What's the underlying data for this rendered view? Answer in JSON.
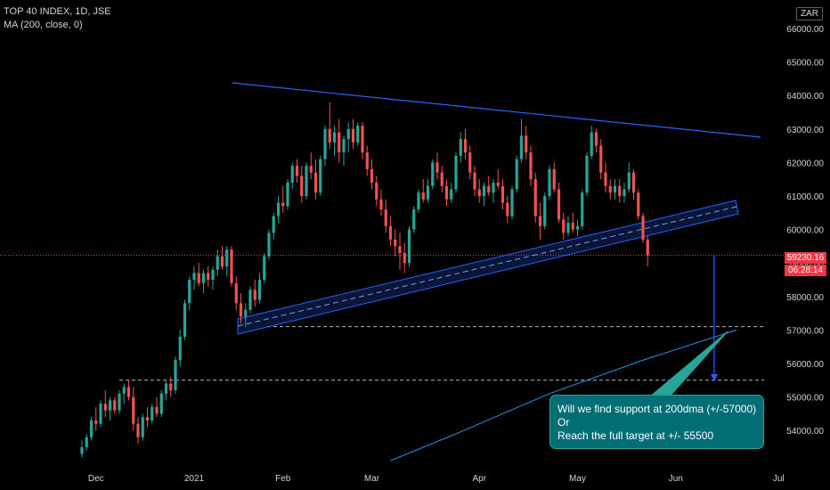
{
  "header": {
    "symbol_line": "TOP 40 INDEX, 1D, JSE",
    "indicator_line": "MA (200, close, 0)",
    "currency": "ZAR"
  },
  "price_tag": {
    "price": "59230.16",
    "countdown": "06:28:14"
  },
  "annotation": {
    "line1": "Will we find support at 200dma (+/-57000)",
    "line2": "Or",
    "line3": "Reach the full target at +/- 55500"
  },
  "colors": {
    "up": "#26a69a",
    "down": "#ef5350",
    "trendline": "#2962ff",
    "ma": "#2196f3",
    "background": "#000000"
  },
  "chart_data": {
    "type": "candlestick",
    "y_axis": {
      "range": [
        53200,
        66500
      ],
      "ticks": [
        54000,
        55000,
        56000,
        57000,
        58000,
        59000,
        60000,
        61000,
        62000,
        63000,
        64000,
        65000,
        66000
      ],
      "tick_labels": [
        "54000.00",
        "55000.00",
        "56000.00",
        "57000.00",
        "58000.00",
        "59000.00",
        "60000.00",
        "61000.00",
        "62000.00",
        "63000.00",
        "64000.00",
        "65000.00",
        "66000.00"
      ]
    },
    "x_axis": {
      "tick_labels": [
        "Dec",
        "2021",
        "Feb",
        "Mar",
        "Apr",
        "May",
        "Jun",
        "Jul"
      ],
      "tick_positions": [
        3,
        24,
        43,
        62,
        85,
        106,
        127,
        149
      ]
    },
    "last_price": 59230.16,
    "levels": [
      {
        "name": "target-level",
        "value": 55500
      },
      {
        "name": "ma-support-level",
        "value": 57100
      }
    ],
    "ma200": [
      {
        "bar": 66,
        "value": 53100
      },
      {
        "bar": 80,
        "value": 53900
      },
      {
        "bar": 100,
        "value": 55100
      },
      {
        "bar": 120,
        "value": 56100
      },
      {
        "bar": 140,
        "value": 57000
      }
    ],
    "candles": [
      [
        53300,
        53700,
        53200,
        53500
      ],
      [
        53500,
        53900,
        53400,
        53800
      ],
      [
        53800,
        54400,
        53700,
        54300
      ],
      [
        54300,
        54700,
        54000,
        54200
      ],
      [
        54200,
        54900,
        54100,
        54800
      ],
      [
        54800,
        55200,
        54400,
        54600
      ],
      [
        54600,
        55000,
        54300,
        54900
      ],
      [
        54900,
        55000,
        54500,
        54600
      ],
      [
        54600,
        55200,
        54500,
        55100
      ],
      [
        55100,
        55400,
        54800,
        55300
      ],
      [
        55300,
        55500,
        54900,
        55000
      ],
      [
        55000,
        55300,
        54000,
        54200
      ],
      [
        54200,
        54400,
        53600,
        53800
      ],
      [
        53800,
        54500,
        53700,
        54400
      ],
      [
        54400,
        54700,
        54100,
        54300
      ],
      [
        54300,
        54800,
        54200,
        54700
      ],
      [
        54700,
        55000,
        54400,
        54500
      ],
      [
        54500,
        55200,
        54400,
        55100
      ],
      [
        55100,
        55500,
        54900,
        55400
      ],
      [
        55400,
        55600,
        55000,
        55200
      ],
      [
        55200,
        56200,
        55100,
        56100
      ],
      [
        56100,
        57000,
        55900,
        56800
      ],
      [
        56800,
        57900,
        56700,
        57800
      ],
      [
        57800,
        58600,
        57600,
        58500
      ],
      [
        58500,
        58900,
        58200,
        58700
      ],
      [
        58700,
        59000,
        58300,
        58400
      ],
      [
        58400,
        58800,
        58100,
        58700
      ],
      [
        58700,
        58900,
        58300,
        58500
      ],
      [
        58500,
        58900,
        58200,
        58800
      ],
      [
        58800,
        59400,
        58600,
        59200
      ],
      [
        59200,
        59500,
        58800,
        58900
      ],
      [
        58900,
        59500,
        58600,
        59400
      ],
      [
        59400,
        59500,
        58300,
        58400
      ],
      [
        58400,
        58600,
        57600,
        57800
      ],
      [
        57800,
        58100,
        57200,
        57400
      ],
      [
        57400,
        57800,
        57100,
        57600
      ],
      [
        57600,
        58300,
        57500,
        58200
      ],
      [
        58200,
        58500,
        57700,
        57900
      ],
      [
        57900,
        58700,
        57800,
        58500
      ],
      [
        58500,
        59300,
        58400,
        59200
      ],
      [
        59200,
        60000,
        59100,
        59900
      ],
      [
        59900,
        60500,
        59700,
        60400
      ],
      [
        60400,
        61000,
        60200,
        60800
      ],
      [
        60800,
        61300,
        60500,
        60700
      ],
      [
        60700,
        61500,
        60600,
        61400
      ],
      [
        61400,
        62000,
        61200,
        61900
      ],
      [
        61900,
        62100,
        61400,
        61600
      ],
      [
        61600,
        61900,
        60800,
        61000
      ],
      [
        61000,
        62000,
        60900,
        61900
      ],
      [
        61900,
        62300,
        61500,
        61700
      ],
      [
        61700,
        62100,
        60900,
        61100
      ],
      [
        61100,
        62200,
        61000,
        62100
      ],
      [
        62100,
        63100,
        61900,
        63000
      ],
      [
        63000,
        63800,
        62400,
        62600
      ],
      [
        62600,
        63100,
        62200,
        62900
      ],
      [
        62900,
        63300,
        62000,
        62300
      ],
      [
        62300,
        62800,
        61900,
        62700
      ],
      [
        62700,
        63200,
        62300,
        63000
      ],
      [
        63000,
        63300,
        62400,
        62600
      ],
      [
        62600,
        63200,
        62500,
        63100
      ],
      [
        63100,
        63200,
        62100,
        62300
      ],
      [
        62300,
        62500,
        61600,
        61800
      ],
      [
        61800,
        62100,
        61200,
        61400
      ],
      [
        61400,
        61600,
        60700,
        60900
      ],
      [
        60900,
        61200,
        60400,
        60600
      ],
      [
        60600,
        60900,
        59900,
        60100
      ],
      [
        60100,
        60400,
        59500,
        59700
      ],
      [
        59700,
        60000,
        59200,
        59500
      ],
      [
        59500,
        59900,
        58800,
        59300
      ],
      [
        59300,
        59600,
        58700,
        59000
      ],
      [
        59000,
        60100,
        58900,
        60000
      ],
      [
        60000,
        60700,
        59900,
        60600
      ],
      [
        60600,
        61200,
        60500,
        61100
      ],
      [
        61100,
        61500,
        60800,
        60900
      ],
      [
        60900,
        61500,
        60800,
        61300
      ],
      [
        61300,
        62100,
        61200,
        62000
      ],
      [
        62000,
        62300,
        61500,
        61700
      ],
      [
        61700,
        61900,
        61100,
        61300
      ],
      [
        61300,
        61500,
        60700,
        60900
      ],
      [
        60900,
        61400,
        60800,
        61200
      ],
      [
        61200,
        62300,
        61100,
        62200
      ],
      [
        62200,
        62900,
        62000,
        62700
      ],
      [
        62700,
        63000,
        62100,
        62300
      ],
      [
        62300,
        62500,
        61500,
        61700
      ],
      [
        61700,
        61900,
        61000,
        61200
      ],
      [
        61200,
        61500,
        60800,
        61000
      ],
      [
        61000,
        61400,
        60700,
        61300
      ],
      [
        61300,
        61600,
        61000,
        61100
      ],
      [
        61100,
        61500,
        60800,
        61400
      ],
      [
        61400,
        61800,
        61200,
        61300
      ],
      [
        61300,
        61500,
        60600,
        60800
      ],
      [
        60800,
        61000,
        60200,
        60400
      ],
      [
        60400,
        61300,
        60300,
        61200
      ],
      [
        61200,
        62200,
        61100,
        62100
      ],
      [
        62100,
        63300,
        62000,
        62800
      ],
      [
        62800,
        63100,
        62100,
        62300
      ],
      [
        62300,
        62500,
        61300,
        61500
      ],
      [
        61500,
        61700,
        60200,
        60400
      ],
      [
        60400,
        60800,
        59700,
        60100
      ],
      [
        60100,
        61100,
        60000,
        61000
      ],
      [
        61000,
        61900,
        60900,
        61800
      ],
      [
        61800,
        62000,
        61100,
        61200
      ],
      [
        61200,
        61400,
        60200,
        60300
      ],
      [
        60300,
        60500,
        59700,
        59900
      ],
      [
        59900,
        60400,
        59800,
        60200
      ],
      [
        60200,
        60500,
        59900,
        60000
      ],
      [
        60000,
        60300,
        59800,
        60100
      ],
      [
        60100,
        61200,
        60000,
        61100
      ],
      [
        61100,
        62300,
        61000,
        62200
      ],
      [
        62200,
        63100,
        62100,
        62900
      ],
      [
        62900,
        63000,
        62300,
        62500
      ],
      [
        62500,
        62700,
        61500,
        61700
      ],
      [
        61700,
        62000,
        61100,
        61300
      ],
      [
        61300,
        61500,
        60900,
        61100
      ],
      [
        61100,
        61500,
        60900,
        61300
      ],
      [
        61300,
        61500,
        60800,
        61000
      ],
      [
        61000,
        61400,
        60800,
        61200
      ],
      [
        61200,
        62000,
        61100,
        61700
      ],
      [
        61700,
        61800,
        60900,
        61100
      ],
      [
        61100,
        61200,
        60300,
        60400
      ],
      [
        60400,
        60500,
        59600,
        59700
      ],
      [
        59700,
        59800,
        58900,
        59230
      ]
    ]
  }
}
